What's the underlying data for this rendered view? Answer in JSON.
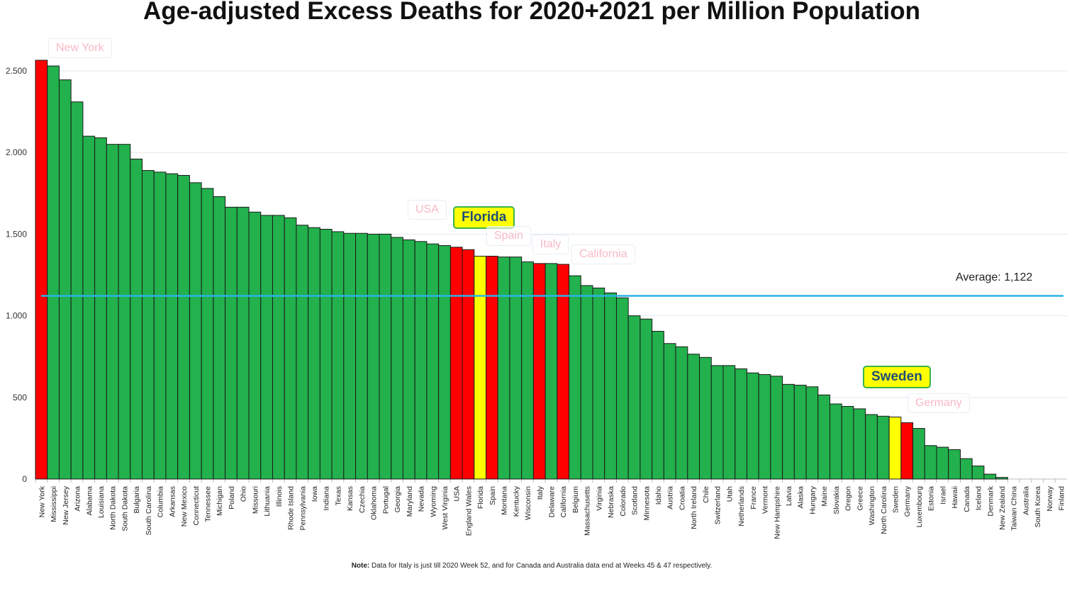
{
  "chart_data": {
    "type": "bar",
    "title": "Age-adjusted Excess Deaths for 2020+2021 per Million Population",
    "xlabel": "",
    "ylabel": "",
    "ylim": [
      0,
      2600
    ],
    "yticks": [
      {
        "value": 0,
        "label": "0"
      },
      {
        "value": 500,
        "label": "500"
      },
      {
        "value": 1000,
        "label": "1.000"
      },
      {
        "value": 1500,
        "label": "1.500"
      },
      {
        "value": 2000,
        "label": "2.000"
      },
      {
        "value": 2500,
        "label": "2.500"
      }
    ],
    "grid": true,
    "categories": [
      "New York",
      "Mississippi",
      "New Jersey",
      "Arizona",
      "Alabama",
      "Louisiana",
      "North Dakota",
      "South Dakota",
      "Bulgaria",
      "South Carolina",
      "Columbia",
      "Arkansas",
      "New Mexico",
      "Connecticut",
      "Tennessee",
      "Michigan",
      "Poland",
      "Ohio",
      "Missouri",
      "Lithuania",
      "Illinois",
      "Rhode Island",
      "Pennsylvania",
      "Iowa",
      "Indiana",
      "Texas",
      "Kansas",
      "Czechia",
      "Oklahoma",
      "Portugal",
      "Georgia",
      "Maryland",
      "Nevada",
      "Wyoming",
      "West Virginia",
      "USA",
      "England Wales",
      "Florida",
      "Spain",
      "Montana",
      "Kentucky",
      "Wisconsin",
      "Italy",
      "Delaware",
      "California",
      "Belgium",
      "Massachusetts",
      "Virginia",
      "Nebraska",
      "Colorado",
      "Scotland",
      "Minnesota",
      "Idaho",
      "Austria",
      "Croatia",
      "North Ireland",
      "Chile",
      "Switzerland",
      "Utah",
      "Netherlands",
      "France",
      "Vermont",
      "New Hampshire",
      "Latvia",
      "Alaska",
      "Hungary",
      "Maine",
      "Slovakia",
      "Oregon",
      "Greece",
      "Washington",
      "North Carolina",
      "Sweden",
      "Germany",
      "Luxembourg",
      "Estonia",
      "Israel",
      "Hawaii",
      "Canada",
      "Iceland",
      "Denmark",
      "New Zealand",
      "Taiwan China",
      "Australia",
      "South Korea",
      "Norway",
      "Finland"
    ],
    "values": [
      2565,
      2530,
      2445,
      2310,
      2100,
      2090,
      2050,
      2050,
      1960,
      1890,
      1880,
      1870,
      1860,
      1815,
      1780,
      1730,
      1665,
      1665,
      1635,
      1615,
      1615,
      1600,
      1555,
      1540,
      1530,
      1515,
      1505,
      1505,
      1500,
      1500,
      1480,
      1465,
      1455,
      1440,
      1430,
      1420,
      1405,
      1365,
      1365,
      1360,
      1360,
      1330,
      1320,
      1320,
      1315,
      1245,
      1185,
      1170,
      1140,
      1110,
      1000,
      980,
      905,
      830,
      810,
      765,
      745,
      695,
      695,
      675,
      650,
      640,
      630,
      580,
      575,
      565,
      515,
      460,
      445,
      430,
      395,
      385,
      380,
      345,
      310,
      205,
      195,
      180,
      125,
      80,
      30,
      10,
      0,
      0,
      0,
      0,
      0
    ],
    "colors": {
      "default": "#22b14c",
      "red": "#ff0000",
      "yellow": "#ffff00",
      "average": "#29b3e6"
    },
    "red_categories": [
      "New York",
      "USA",
      "England Wales",
      "Spain",
      "Italy",
      "California",
      "Germany"
    ],
    "yellow_categories": [
      "Florida",
      "Sweden"
    ],
    "average": {
      "value": 1122,
      "label": "Average: 1,122"
    },
    "annotations": [
      {
        "text": "New York",
        "highlight": false
      },
      {
        "text": "USA",
        "highlight": false
      },
      {
        "text": "Florida",
        "highlight": true
      },
      {
        "text": "Spain",
        "highlight": false
      },
      {
        "text": "Italy",
        "highlight": false
      },
      {
        "text": "California",
        "highlight": false
      },
      {
        "text": "Sweden",
        "highlight": true
      },
      {
        "text": "Germany",
        "highlight": false
      }
    ],
    "note": {
      "prefix": "Note:",
      "text": " Data for Italy is just till 2020 Week 52, and for Canada and Australia data end at Weeks 45 & 47 respectively."
    }
  }
}
